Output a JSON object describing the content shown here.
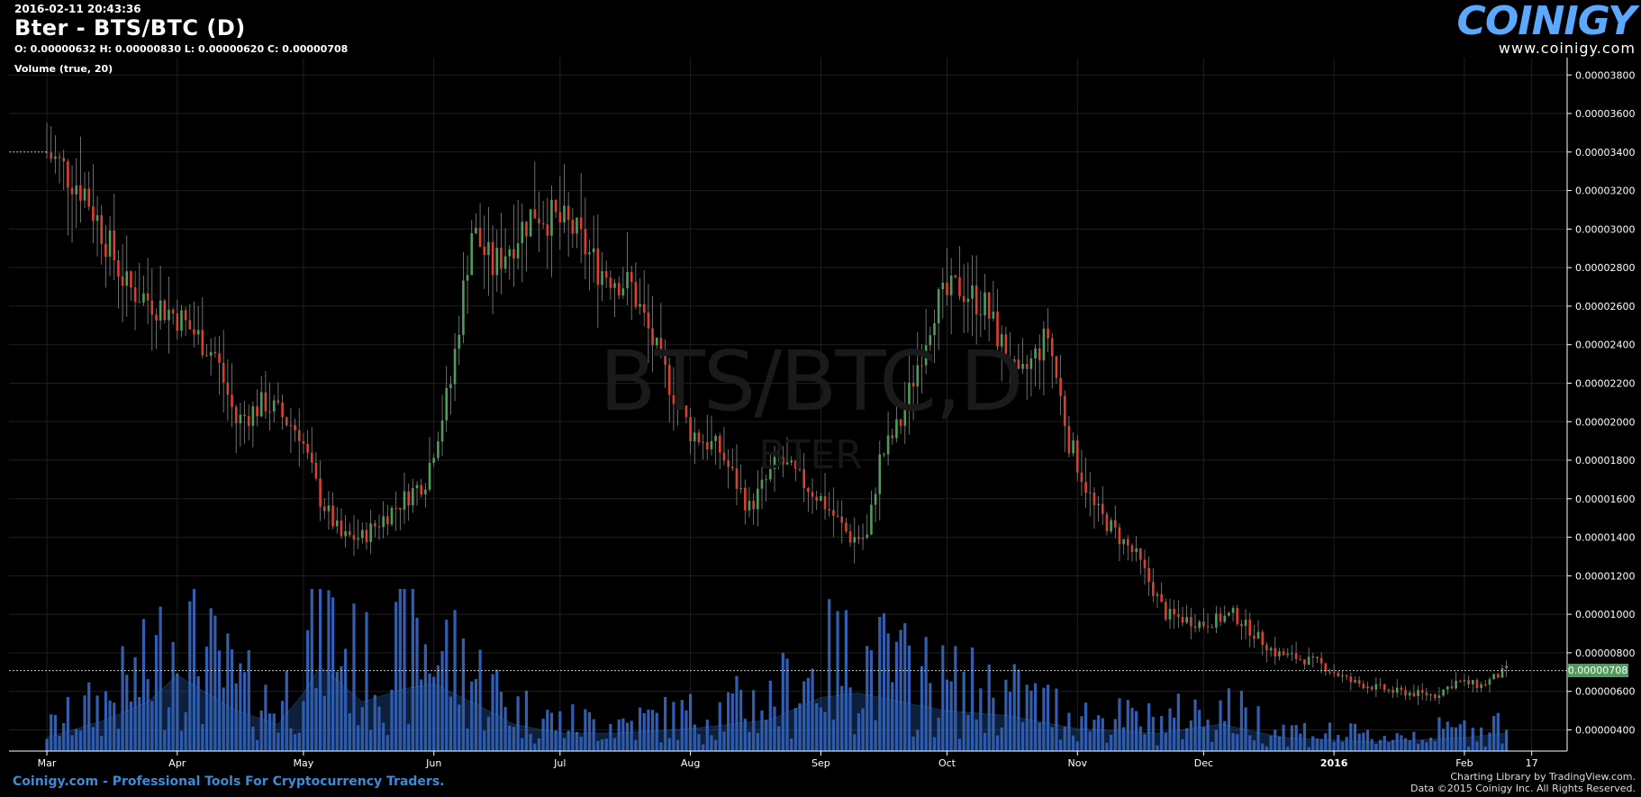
{
  "header": {
    "timestamp": "2016-02-11 20:43:36",
    "title": "Bter - BTS/BTC (D)",
    "ohlc": "O: 0.00000632 H: 0.00000830 L: 0.00000620 C: 0.00000708",
    "volume_label": "Volume (true, 20)"
  },
  "logo": {
    "name": "COINIGY",
    "url": "www.coinigy.com"
  },
  "watermark": {
    "main": "BTS/BTC,D",
    "sub": "BTER"
  },
  "footer": {
    "left": "Coinigy.com - Professional Tools For Cryptocurrency Traders.",
    "right_line1": "Charting Library by TradingView.com.",
    "right_line2": "Data ©2015 Coinigy Inc. All Rights Reserved."
  },
  "colors": {
    "up": "#4f9d5b",
    "down": "#d9412f",
    "volume": "#3a6fd0",
    "grid": "#1f1f1f",
    "axis_text": "#ffffff"
  },
  "chart_data": {
    "type": "candlestick",
    "y_ticks": [
      "0.00003800",
      "0.00003600",
      "0.00003400",
      "0.00003200",
      "0.00003000",
      "0.00002800",
      "0.00002600",
      "0.00002400",
      "0.00002200",
      "0.00002000",
      "0.00001800",
      "0.00001600",
      "0.00001400",
      "0.00001200",
      "0.00001000",
      "0.00000800",
      "0.00000600",
      "0.00000400"
    ],
    "ylim": [
      2.9e-06,
      3.89e-05
    ],
    "x_ticks": [
      "Mar",
      "Apr",
      "May",
      "Jun",
      "Jul",
      "Aug",
      "Sep",
      "Oct",
      "Nov",
      "Dec",
      "2016",
      "Feb",
      "17"
    ],
    "last_price": "0.00000708",
    "last_price_value": 7.08e-06,
    "price_path": [
      {
        "date": "2015-03-01",
        "close": 3.4e-05
      },
      {
        "date": "2015-03-10",
        "close": 3.2e-05
      },
      {
        "date": "2015-03-20",
        "close": 2.7e-05
      },
      {
        "date": "2015-04-01",
        "close": 2.55e-05
      },
      {
        "date": "2015-04-10",
        "close": 2.35e-05
      },
      {
        "date": "2015-04-15",
        "close": 2e-05
      },
      {
        "date": "2015-04-22",
        "close": 2.1e-05
      },
      {
        "date": "2015-04-30",
        "close": 1.95e-05
      },
      {
        "date": "2015-05-05",
        "close": 1.6e-05
      },
      {
        "date": "2015-05-10",
        "close": 1.4e-05
      },
      {
        "date": "2015-05-15",
        "close": 1.4e-05
      },
      {
        "date": "2015-05-25",
        "close": 1.6e-05
      },
      {
        "date": "2015-05-30",
        "close": 1.7e-05
      },
      {
        "date": "2015-06-05",
        "close": 2.2e-05
      },
      {
        "date": "2015-06-10",
        "close": 3e-05
      },
      {
        "date": "2015-06-15",
        "close": 2.8e-05
      },
      {
        "date": "2015-06-25",
        "close": 3.1e-05
      },
      {
        "date": "2015-07-04",
        "close": 3e-05
      },
      {
        "date": "2015-07-10",
        "close": 2.8e-05
      },
      {
        "date": "2015-07-18",
        "close": 2.7e-05
      },
      {
        "date": "2015-07-25",
        "close": 2.3e-05
      },
      {
        "date": "2015-08-01",
        "close": 1.95e-05
      },
      {
        "date": "2015-08-08",
        "close": 1.85e-05
      },
      {
        "date": "2015-08-15",
        "close": 1.55e-05
      },
      {
        "date": "2015-08-22",
        "close": 1.8e-05
      },
      {
        "date": "2015-09-01",
        "close": 1.6e-05
      },
      {
        "date": "2015-09-08",
        "close": 1.4e-05
      },
      {
        "date": "2015-09-12",
        "close": 1.4e-05
      },
      {
        "date": "2015-09-15",
        "close": 1.8e-05
      },
      {
        "date": "2015-09-20",
        "close": 2e-05
      },
      {
        "date": "2015-09-28",
        "close": 2.6e-05
      },
      {
        "date": "2015-10-04",
        "close": 2.7e-05
      },
      {
        "date": "2015-10-10",
        "close": 2.6e-05
      },
      {
        "date": "2015-10-18",
        "close": 2.2e-05
      },
      {
        "date": "2015-10-25",
        "close": 2.45e-05
      },
      {
        "date": "2015-10-30",
        "close": 1.9e-05
      },
      {
        "date": "2015-11-05",
        "close": 1.55e-05
      },
      {
        "date": "2015-11-15",
        "close": 1.3e-05
      },
      {
        "date": "2015-11-22",
        "close": 1e-05
      },
      {
        "date": "2015-12-01",
        "close": 9.5e-06
      },
      {
        "date": "2015-12-08",
        "close": 1e-05
      },
      {
        "date": "2015-12-18",
        "close": 8e-06
      },
      {
        "date": "2015-12-28",
        "close": 7.5e-06
      },
      {
        "date": "2016-01-05",
        "close": 6.5e-06
      },
      {
        "date": "2016-01-15",
        "close": 6e-06
      },
      {
        "date": "2016-01-25",
        "close": 5.8e-06
      },
      {
        "date": "2016-01-30",
        "close": 6.5e-06
      },
      {
        "date": "2016-02-05",
        "close": 6.3e-06
      },
      {
        "date": "2016-02-11",
        "close": 7.1e-06
      }
    ],
    "volume_path": [
      {
        "date": "2015-03-01",
        "volume": 0.15
      },
      {
        "date": "2015-03-15",
        "volume": 0.35
      },
      {
        "date": "2015-03-25",
        "volume": 0.55
      },
      {
        "date": "2015-04-01",
        "volume": 0.85
      },
      {
        "date": "2015-04-15",
        "volume": 0.45
      },
      {
        "date": "2015-04-25",
        "volume": 0.3
      },
      {
        "date": "2015-05-01",
        "volume": 0.65
      },
      {
        "date": "2015-05-05",
        "volume": 0.95
      },
      {
        "date": "2015-05-15",
        "volume": 0.55
      },
      {
        "date": "2015-05-25",
        "volume": 0.7
      },
      {
        "date": "2015-06-01",
        "volume": 0.75
      },
      {
        "date": "2015-06-10",
        "volume": 0.55
      },
      {
        "date": "2015-06-20",
        "volume": 0.3
      },
      {
        "date": "2015-07-01",
        "volume": 0.2
      },
      {
        "date": "2015-07-15",
        "volume": 0.2
      },
      {
        "date": "2015-08-01",
        "volume": 0.25
      },
      {
        "date": "2015-08-20",
        "volume": 0.35
      },
      {
        "date": "2015-09-01",
        "volume": 0.6
      },
      {
        "date": "2015-09-10",
        "volume": 0.65
      },
      {
        "date": "2015-09-20",
        "volume": 0.55
      },
      {
        "date": "2015-10-01",
        "volume": 0.45
      },
      {
        "date": "2015-10-15",
        "volume": 0.4
      },
      {
        "date": "2015-11-01",
        "volume": 0.25
      },
      {
        "date": "2015-11-20",
        "volume": 0.2
      },
      {
        "date": "2015-12-05",
        "volume": 0.3
      },
      {
        "date": "2015-12-20",
        "volume": 0.15
      },
      {
        "date": "2016-01-10",
        "volume": 0.1
      },
      {
        "date": "2016-02-01",
        "volume": 0.15
      },
      {
        "date": "2016-02-11",
        "volume": 0.2
      }
    ]
  }
}
